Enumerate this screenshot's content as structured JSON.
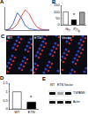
{
  "chart_data": [
    {
      "type": "line",
      "title": "A",
      "x": [
        0,
        1,
        2,
        3,
        4,
        5,
        6,
        7,
        8,
        9,
        10,
        11
      ],
      "series": [
        {
          "color": "#d62728",
          "values": [
            0,
            2,
            8,
            25,
            60,
            88,
            70,
            35,
            12,
            4,
            1,
            0
          ]
        },
        {
          "color": "#1f3fbf",
          "values": [
            0,
            5,
            30,
            75,
            55,
            20,
            6,
            2,
            0,
            0,
            0,
            0
          ]
        }
      ],
      "xlim": [
        0,
        11
      ],
      "ylim": [
        0,
        100
      ],
      "tick_labels": false
    },
    {
      "type": "bar",
      "title": "B",
      "categories": [
        "WT",
        "ETN",
        "Vector"
      ],
      "values": [
        100,
        38,
        97
      ],
      "colors": [
        "#ffffff",
        "#000000",
        "#9e9e9e"
      ],
      "ylim": [
        0,
        150
      ],
      "yticks": [
        0,
        50,
        100,
        150
      ],
      "annotations": [
        {
          "category": "ETN",
          "text": "*"
        }
      ]
    },
    {
      "type": "bar",
      "title": "D",
      "categories": [
        "WT",
        "ETN"
      ],
      "values": [
        1,
        0.4
      ],
      "colors": [
        "#ffffff",
        "#000000"
      ],
      "ylim": [
        0,
        1.5
      ],
      "yticks": [
        0,
        0.5,
        1,
        1.5
      ],
      "annotations": [
        {
          "category": "ETN",
          "text": "*"
        }
      ]
    }
  ],
  "images": {
    "label": "C",
    "panels": [
      "WT",
      "ETN",
      "Vector"
    ]
  },
  "blot": {
    "label": "E",
    "lanes": [
      "WT",
      "ETN",
      "Vector"
    ],
    "rows": [
      {
        "name": "TSPAN8",
        "intensity": [
          1,
          0.3,
          0.95
        ]
      },
      {
        "name": "Actin",
        "intensity": [
          0.9,
          0.9,
          0.9
        ]
      }
    ]
  }
}
